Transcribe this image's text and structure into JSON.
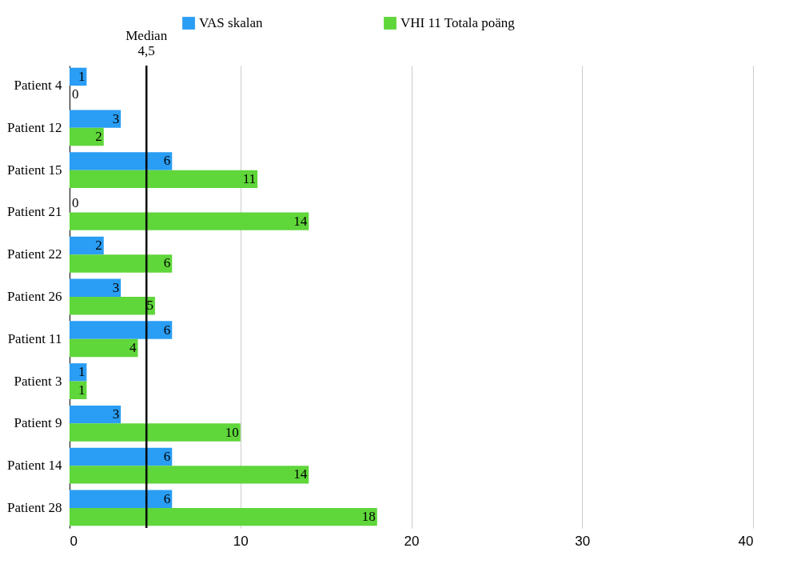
{
  "chart_data": {
    "type": "bar",
    "orientation": "horizontal",
    "categories": [
      "Patient 4",
      "Patient 12",
      "Patient 15",
      "Patient 21",
      "Patient 22",
      "Patient 26",
      "Patient 11",
      "Patient 3",
      "Patient 9",
      "Patient 14",
      "Patient 28"
    ],
    "series": [
      {
        "name": "VAS skalan",
        "color": "#2a9df4",
        "values": [
          1,
          3,
          6,
          0,
          2,
          3,
          6,
          1,
          3,
          6,
          6
        ]
      },
      {
        "name": "VHI 11 Totala poäng",
        "color": "#5fd63a",
        "values": [
          0,
          2,
          11,
          14,
          6,
          5,
          4,
          1,
          10,
          14,
          18
        ]
      }
    ],
    "xlim": [
      0,
      40
    ],
    "xticks": [
      0,
      10,
      20,
      30,
      40
    ],
    "grid": "x",
    "legend": "top",
    "data_labels": true,
    "ref_lines": [
      {
        "axis": "x",
        "value": 4.5,
        "label": "Median 4,5",
        "color": "#000000"
      }
    ]
  }
}
